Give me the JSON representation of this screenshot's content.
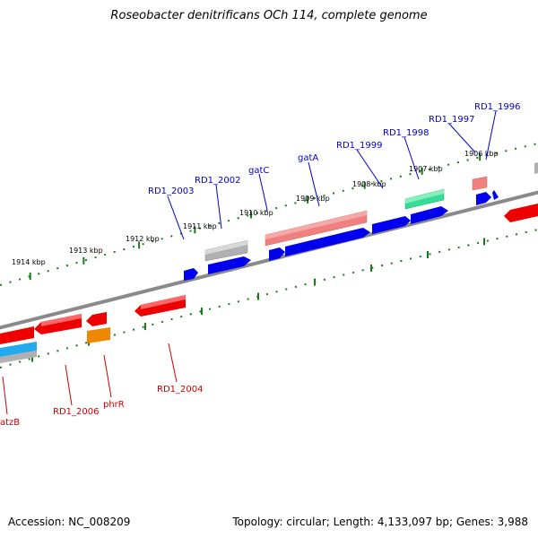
{
  "title": "Roseobacter denitrificans OCh 114, complete genome",
  "footer": {
    "accession": "Accession: NC_008209",
    "summary": "Topology: circular; Length: 4,133,097 bp; Genes: 3,988"
  },
  "colors": {
    "backbone": "#8a8a8a",
    "tick": "#1a7a1a",
    "forward_label": "#0000cc",
    "reverse_label": "#cc0000"
  },
  "scale_labels": [
    "1914 kbp",
    "1913 kbp",
    "1912 kbp",
    "1911 kbp",
    "1910 kbp",
    "1909 kbp",
    "1908 kbp",
    "1907 kbp",
    "1906 kbp"
  ],
  "forward_gene_labels": [
    "RD1_2003",
    "RD1_2002",
    "gatC",
    "gatA",
    "RD1_1999",
    "RD1_1998",
    "RD1_1997",
    "RD1_1996"
  ],
  "reverse_gene_labels": [
    "atzB",
    "RD1_2006",
    "phrR",
    "RD1_2004"
  ],
  "gene_colors": {
    "red": "#ee0000",
    "blue": "#0000ee",
    "gray": "#b0b0b0",
    "salmon": "#f08080",
    "green": "#33dd99",
    "orange": "#ee8800",
    "cyan": "#22aaee"
  }
}
